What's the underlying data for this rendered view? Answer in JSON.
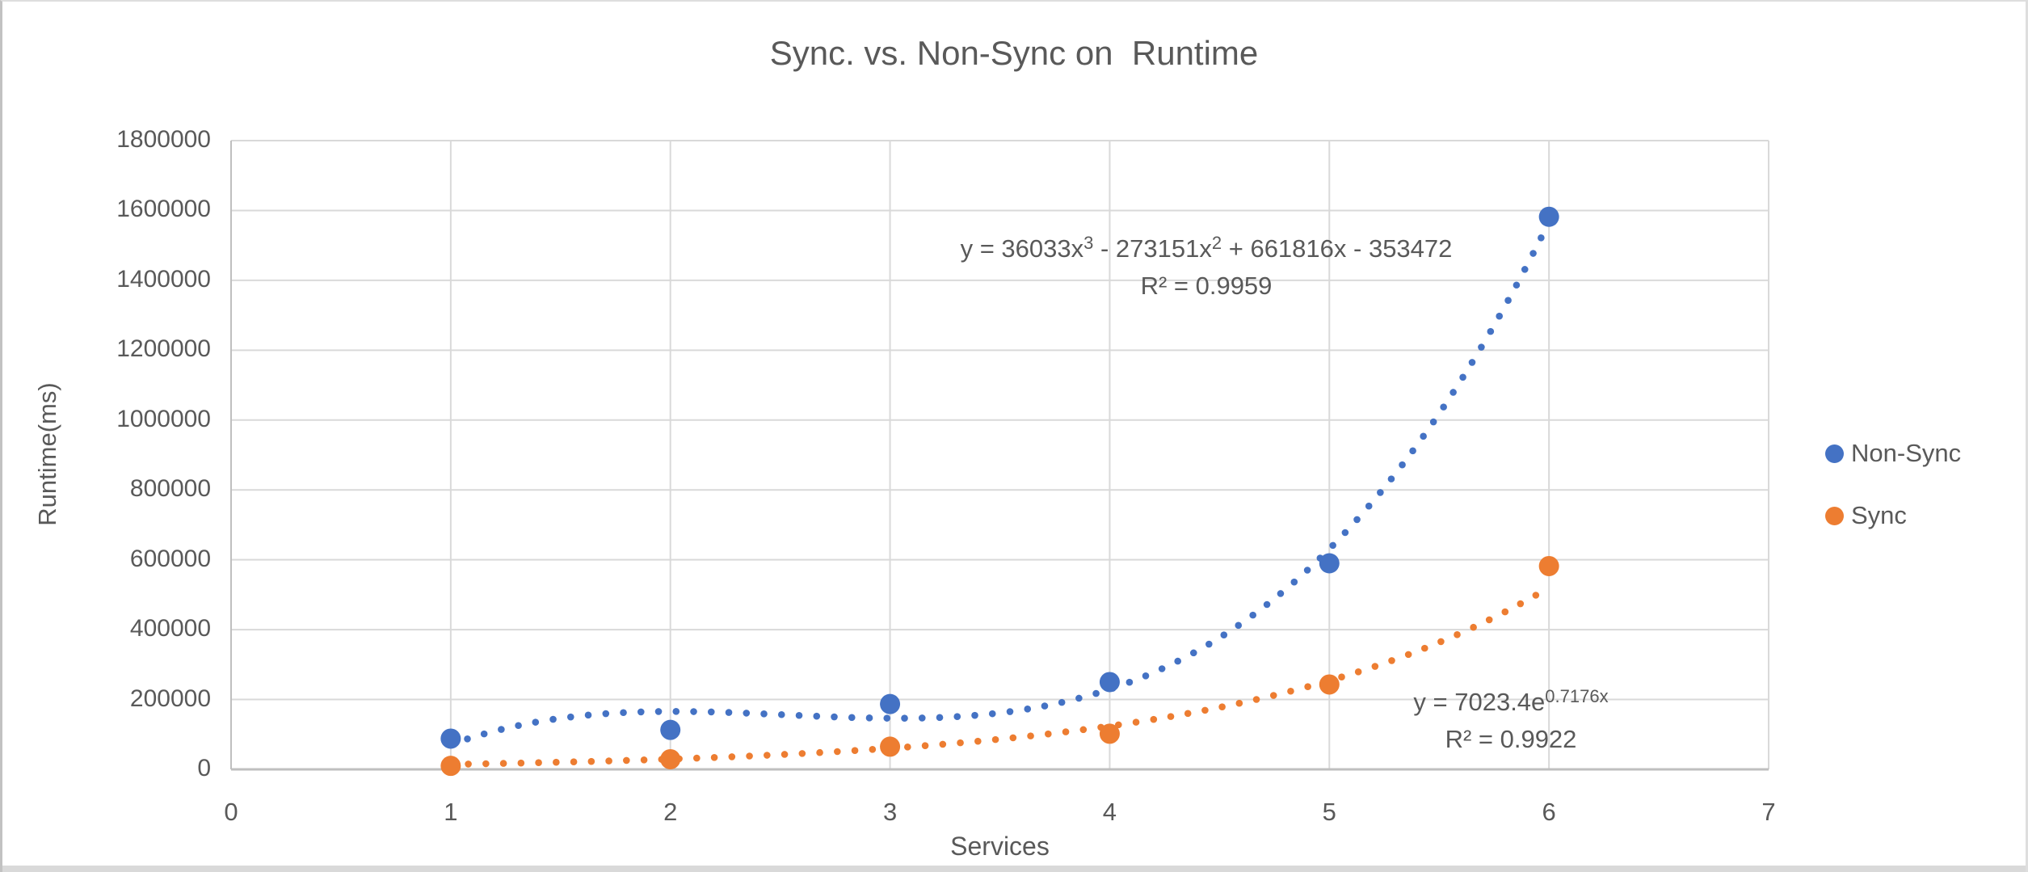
{
  "chart_data": {
    "type": "scatter",
    "title": "Sync. vs. Non-Sync on  Runtime",
    "xlabel": "Services",
    "ylabel": "Runtime(ms)",
    "xlim": [
      0,
      7
    ],
    "ylim": [
      0,
      1800000
    ],
    "xticks": [
      0,
      1,
      2,
      3,
      4,
      5,
      6,
      7
    ],
    "yticks": [
      0,
      200000,
      400000,
      600000,
      800000,
      1000000,
      1200000,
      1400000,
      1600000,
      1800000
    ],
    "grid": true,
    "legend_position": "right",
    "colors": {
      "grid": "#D9D9D9",
      "axis": "#BFBFBF",
      "text": "#595959",
      "background": "#FFFFFF"
    },
    "series": [
      {
        "name": "Non-Sync",
        "color": "#4472C4",
        "x": [
          1,
          2,
          3,
          4,
          5,
          6
        ],
        "y": [
          88000,
          113000,
          187000,
          250000,
          590000,
          1582000
        ],
        "trendline": {
          "type": "polynomial",
          "degree": 3,
          "coefficients": [
            36033,
            -273151,
            661816,
            -353472
          ],
          "range": [
            1,
            6.03
          ],
          "equation_segments": [
            {
              "text": "y = 36033x"
            },
            {
              "text": "3",
              "sup": true
            },
            {
              "text": " - 273151x"
            },
            {
              "text": "2",
              "sup": true
            },
            {
              "text": " + 661816x - 353472"
            }
          ],
          "r2_label": "R² = 0.9959"
        }
      },
      {
        "name": "Sync",
        "color": "#ED7D31",
        "x": [
          1,
          2,
          3,
          4,
          5,
          6
        ],
        "y": [
          10000,
          29000,
          65000,
          102000,
          243000,
          582000
        ],
        "trendline": {
          "type": "exponential",
          "a": 7023.4,
          "b": 0.7176,
          "range": [
            1,
            6
          ],
          "equation_segments": [
            {
              "text": "y = 7023.4e"
            },
            {
              "text": "0.7176x",
              "sup": true
            }
          ],
          "r2_label": "R² = 0.9922"
        }
      }
    ]
  }
}
